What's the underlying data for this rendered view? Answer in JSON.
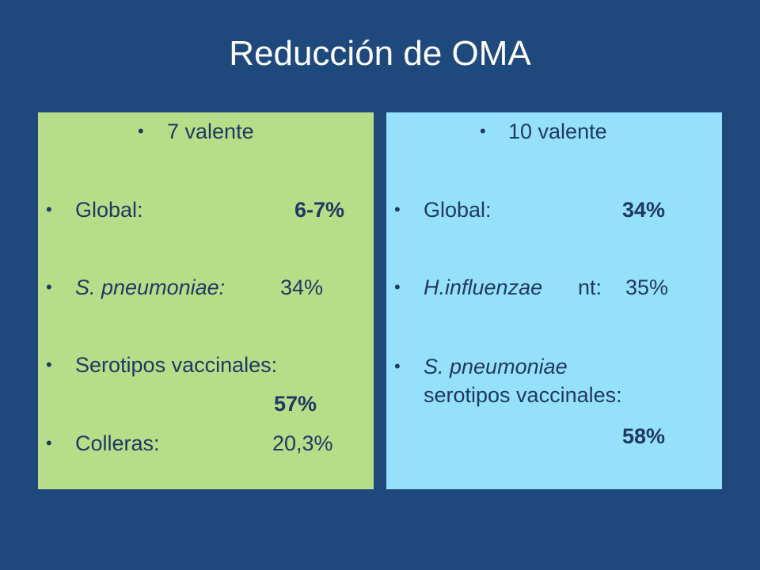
{
  "title": "Reducción de OMA",
  "left_panel": {
    "heading": "7 valente",
    "global_label": "Global:",
    "global_value": "6-7%",
    "spneumo_label": "S. pneumoniae:",
    "spneumo_value": "34%",
    "serotipos_label": "Serotipos vaccinales:",
    "serotipos_value": "57%",
    "colleras_label": "Colleras:",
    "colleras_value": "20,3%"
  },
  "right_panel": {
    "heading": "10 valente",
    "global_label": "Global:",
    "global_value": "34%",
    "hinfl_label_italic": "H.influenzae",
    "hinfl_label_rest": "nt:",
    "hinfl_value": "35%",
    "spneumo_label": "S. pneumoniae",
    "serotipos_label": "serotipos vaccinales:",
    "serotipos_value": "58%"
  },
  "colors": {
    "background": "#1f497d",
    "left_panel": "#b6de88",
    "right_panel": "#95e1fd",
    "text": "#1f3864"
  }
}
